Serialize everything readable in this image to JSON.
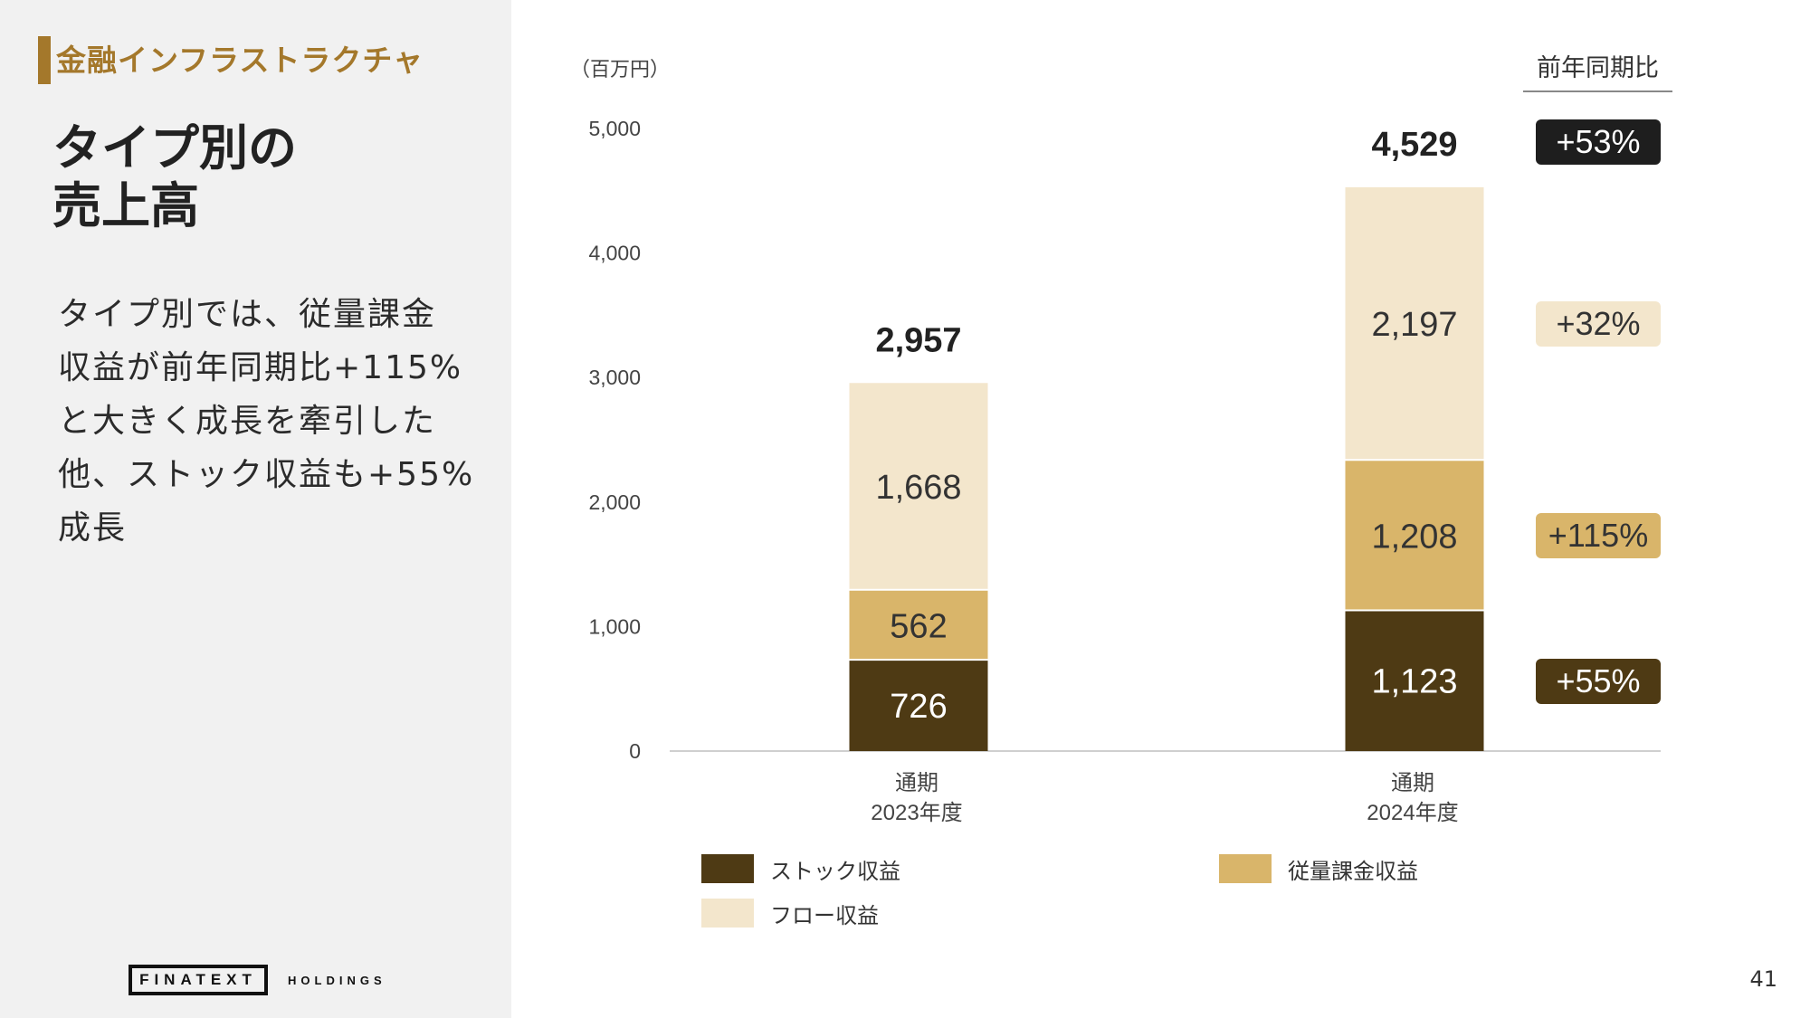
{
  "header": {
    "section": "金融インフラストラクチャ",
    "title_lines": [
      "タイプ別の",
      "売上高"
    ]
  },
  "description_lines": [
    "タイプ別では、従量課金",
    "収益が前年同期比+115%",
    "と大きく成長を牽引した",
    "他、ストック収益も+55%",
    "成長"
  ],
  "footer": {
    "logo_main": "FINATEXT",
    "logo_sub": "HOLDINGS",
    "page_number": "41"
  },
  "colors": {
    "accent": "#a4782b",
    "stock": "#4e3a14",
    "usage": "#d9b56a",
    "flow": "#f3e6cc",
    "badge_total": "#1e1e1e"
  },
  "yoy": {
    "header": "前年同期比",
    "badges": [
      {
        "label": "+53%",
        "level": "total",
        "bg": "#1e1e1e",
        "fg": "#ffffff"
      },
      {
        "label": "+32%",
        "level": "flow",
        "bg": "#f3e6cc",
        "fg": "#333333"
      },
      {
        "label": "+115%",
        "level": "usage",
        "bg": "#d9b56a",
        "fg": "#333333"
      },
      {
        "label": "+55%",
        "level": "stock",
        "bg": "#4e3a14",
        "fg": "#ffffff"
      }
    ]
  },
  "chart_data": {
    "type": "bar",
    "stacked": true,
    "unit_label": "（百万円）",
    "categories": [
      [
        "通期",
        "2023年度"
      ],
      [
        "通期",
        "2024年度"
      ]
    ],
    "series": [
      {
        "name": "ストック収益",
        "key": "stock",
        "values": [
          726,
          1123
        ],
        "color": "#4e3a14",
        "text_color": "#ffffff"
      },
      {
        "name": "従量課金収益",
        "key": "usage",
        "values": [
          562,
          1208
        ],
        "color": "#d9b56a",
        "text_color": "#333333"
      },
      {
        "name": "フロー収益",
        "key": "flow",
        "values": [
          1668,
          2197
        ],
        "color": "#f3e6cc",
        "text_color": "#333333"
      }
    ],
    "totals": [
      "2,957",
      "4,529"
    ],
    "ylim": [
      0,
      5000
    ],
    "yticks": [
      0,
      1000,
      2000,
      3000,
      4000,
      5000
    ],
    "ytick_labels": [
      "0",
      "1,000",
      "2,000",
      "3,000",
      "4,000",
      "5,000"
    ],
    "legend_position": "bottom",
    "grid": false
  }
}
